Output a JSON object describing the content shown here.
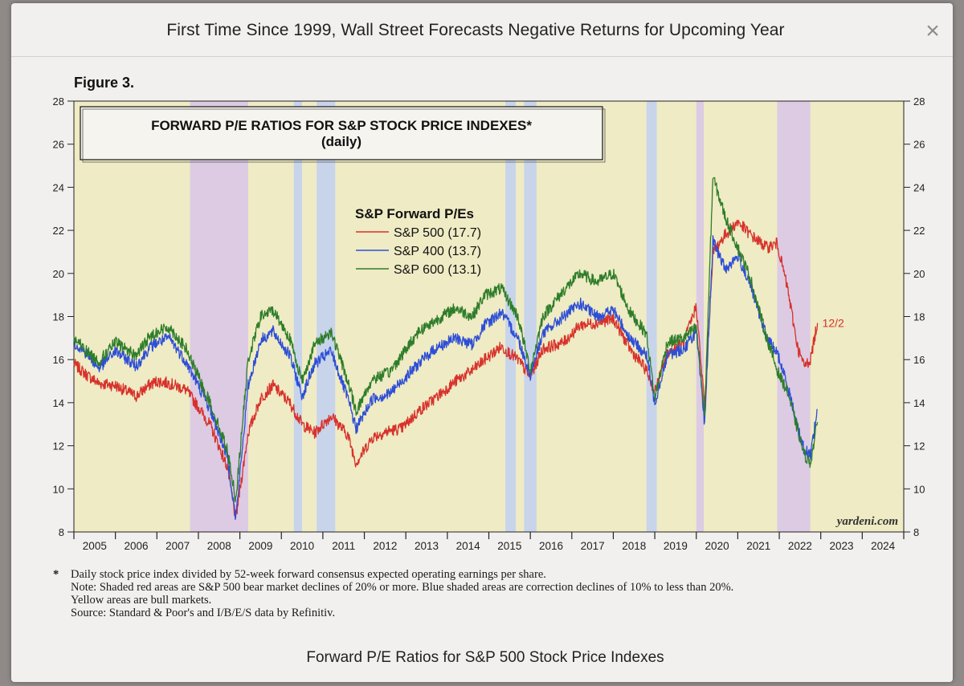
{
  "window": {
    "title": "First Time Since 1999, Wall Street Forecasts Negative Returns for Upcoming Year",
    "close_symbol": "×"
  },
  "figure_label": "Figure 3.",
  "caption": "Forward P/E Ratios for S&P 500 Stock Price Indexes",
  "notes": {
    "star": "*",
    "line1": "Daily stock price index divided by 52-week forward consensus expected operating earnings per share.",
    "line2": "Note: Shaded red areas are S&P 500 bear market declines of 20% or more.  Blue shaded areas are correction declines of 10% to less than 20%.",
    "line3": "Yellow areas are bull markets.",
    "line4": "Source: Standard & Poor's and I/B/E/S data by Refinitiv."
  },
  "chart_data": {
    "type": "line",
    "title": "FORWARD P/E RATIOS FOR S&P STOCK PRICE INDEXES*",
    "subtitle": "(daily)",
    "legend_title": "S&P Forward P/Es",
    "watermark": "yardeni.com",
    "end_annotation": "12/2",
    "xlabel": "",
    "ylabel": "",
    "xlim": [
      2005,
      2025
    ],
    "ylim": [
      8,
      28
    ],
    "yticks": [
      8,
      10,
      12,
      14,
      16,
      18,
      20,
      22,
      24,
      26,
      28
    ],
    "ytick_labels": [
      "8",
      "10",
      "12",
      "14",
      "16",
      "18",
      "20",
      "22",
      "24",
      "26",
      "28"
    ],
    "xtick_labels": [
      "2005",
      "2006",
      "2007",
      "2008",
      "2009",
      "2010",
      "2011",
      "2012",
      "2013",
      "2014",
      "2015",
      "2016",
      "2017",
      "2018",
      "2019",
      "2020",
      "2021",
      "2022",
      "2023",
      "2024"
    ],
    "shaded_regions": [
      {
        "kind": "bull",
        "start": 2005.0,
        "end": 2007.8,
        "color": "#efebc4"
      },
      {
        "kind": "bear",
        "start": 2007.8,
        "end": 2009.2,
        "color": "#dccbe3"
      },
      {
        "kind": "bull",
        "start": 2009.2,
        "end": 2010.3,
        "color": "#efebc4"
      },
      {
        "kind": "correction",
        "start": 2010.3,
        "end": 2010.5,
        "color": "#c7d4ea"
      },
      {
        "kind": "bull",
        "start": 2010.5,
        "end": 2010.85,
        "color": "#efebc4"
      },
      {
        "kind": "correction",
        "start": 2010.85,
        "end": 2011.3,
        "color": "#c7d4ea"
      },
      {
        "kind": "bull",
        "start": 2011.3,
        "end": 2015.4,
        "color": "#efebc4"
      },
      {
        "kind": "correction",
        "start": 2015.4,
        "end": 2015.65,
        "color": "#c7d4ea"
      },
      {
        "kind": "bull",
        "start": 2015.65,
        "end": 2015.85,
        "color": "#efebc4"
      },
      {
        "kind": "correction",
        "start": 2015.85,
        "end": 2016.15,
        "color": "#c7d4ea"
      },
      {
        "kind": "bull",
        "start": 2016.15,
        "end": 2018.8,
        "color": "#efebc4"
      },
      {
        "kind": "correction",
        "start": 2018.8,
        "end": 2019.05,
        "color": "#c7d4ea"
      },
      {
        "kind": "bull",
        "start": 2019.05,
        "end": 2020.0,
        "color": "#efebc4"
      },
      {
        "kind": "bear",
        "start": 2020.0,
        "end": 2020.18,
        "color": "#dccbe3"
      },
      {
        "kind": "bull",
        "start": 2020.18,
        "end": 2021.95,
        "color": "#efebc4"
      },
      {
        "kind": "bear",
        "start": 2021.95,
        "end": 2022.75,
        "color": "#dccbe3"
      },
      {
        "kind": "bull",
        "start": 2022.75,
        "end": 2025.0,
        "color": "#efebc4"
      }
    ],
    "series": [
      {
        "name": "S&P 500 (17.7)",
        "color": "#d7322c",
        "x": [
          2005.0,
          2005.3,
          2005.6,
          2006.0,
          2006.5,
          2006.8,
          2007.0,
          2007.3,
          2007.7,
          2008.0,
          2008.3,
          2008.7,
          2008.9,
          2009.2,
          2009.5,
          2009.8,
          2010.2,
          2010.5,
          2010.8,
          2011.2,
          2011.6,
          2011.8,
          2012.2,
          2012.6,
          2012.9,
          2013.3,
          2013.7,
          2014.2,
          2014.6,
          2014.9,
          2015.3,
          2015.7,
          2016.0,
          2016.3,
          2016.8,
          2017.2,
          2017.6,
          2018.0,
          2018.4,
          2018.8,
          2019.0,
          2019.3,
          2019.7,
          2020.0,
          2020.2,
          2020.4,
          2020.7,
          2021.0,
          2021.3,
          2021.7,
          2021.95,
          2022.2,
          2022.45,
          2022.6,
          2022.75,
          2022.92
        ],
        "values": [
          15.8,
          15.3,
          14.9,
          14.8,
          14.3,
          14.8,
          15.0,
          14.9,
          14.6,
          13.8,
          12.9,
          11.0,
          8.6,
          12.6,
          14.2,
          14.8,
          14.0,
          13.0,
          12.6,
          13.4,
          12.5,
          11.2,
          12.4,
          12.7,
          12.8,
          13.6,
          14.2,
          15.0,
          15.5,
          16.0,
          16.6,
          16.0,
          15.2,
          16.5,
          16.8,
          17.6,
          17.7,
          17.9,
          16.5,
          15.5,
          14.5,
          16.3,
          16.8,
          18.5,
          13.8,
          21.0,
          21.8,
          22.4,
          21.8,
          21.2,
          21.4,
          19.3,
          16.5,
          15.7,
          16.0,
          17.7
        ]
      },
      {
        "name": "S&P 400 (13.7)",
        "color": "#2d4ed6",
        "x": [
          2005.0,
          2005.3,
          2005.6,
          2006.0,
          2006.5,
          2006.8,
          2007.0,
          2007.3,
          2007.7,
          2008.0,
          2008.3,
          2008.7,
          2008.9,
          2009.2,
          2009.5,
          2009.8,
          2010.2,
          2010.5,
          2010.8,
          2011.2,
          2011.6,
          2011.8,
          2012.2,
          2012.6,
          2012.9,
          2013.3,
          2013.7,
          2014.2,
          2014.6,
          2014.9,
          2015.3,
          2015.7,
          2016.0,
          2016.3,
          2016.8,
          2017.2,
          2017.6,
          2018.0,
          2018.4,
          2018.8,
          2019.0,
          2019.3,
          2019.7,
          2020.0,
          2020.2,
          2020.4,
          2020.7,
          2021.0,
          2021.3,
          2021.7,
          2021.95,
          2022.2,
          2022.45,
          2022.6,
          2022.75,
          2022.92
        ],
        "values": [
          16.8,
          16.3,
          15.6,
          16.4,
          15.7,
          16.5,
          16.8,
          17.0,
          15.9,
          14.8,
          13.6,
          11.5,
          8.6,
          14.8,
          16.9,
          17.3,
          16.2,
          14.3,
          15.8,
          16.4,
          14.2,
          12.8,
          14.2,
          14.4,
          15.0,
          15.8,
          16.5,
          17.0,
          16.7,
          17.6,
          18.2,
          17.0,
          15.3,
          17.2,
          18.0,
          18.6,
          18.0,
          18.3,
          17.0,
          16.2,
          14.0,
          16.2,
          16.5,
          17.3,
          13.0,
          21.5,
          20.2,
          20.8,
          19.5,
          17.0,
          16.3,
          14.8,
          12.8,
          11.8,
          11.6,
          13.7
        ]
      },
      {
        "name": "S&P 600 (13.1)",
        "color": "#2e7d2a",
        "x": [
          2005.0,
          2005.3,
          2005.6,
          2006.0,
          2006.5,
          2006.8,
          2007.0,
          2007.3,
          2007.7,
          2008.0,
          2008.3,
          2008.7,
          2008.9,
          2009.2,
          2009.5,
          2009.8,
          2010.2,
          2010.5,
          2010.8,
          2011.2,
          2011.6,
          2011.8,
          2012.2,
          2012.6,
          2012.9,
          2013.3,
          2013.7,
          2014.2,
          2014.6,
          2014.9,
          2015.3,
          2015.7,
          2016.0,
          2016.3,
          2016.8,
          2017.2,
          2017.6,
          2018.0,
          2018.4,
          2018.8,
          2019.0,
          2019.3,
          2019.7,
          2020.0,
          2020.2,
          2020.4,
          2020.7,
          2021.0,
          2021.3,
          2021.7,
          2021.95,
          2022.2,
          2022.45,
          2022.6,
          2022.75,
          2022.92
        ],
        "values": [
          17.0,
          16.4,
          15.9,
          16.8,
          16.2,
          17.0,
          17.3,
          17.5,
          16.5,
          15.2,
          13.9,
          11.8,
          9.5,
          16.0,
          18.0,
          18.3,
          17.0,
          15.0,
          16.7,
          17.3,
          15.0,
          13.6,
          15.1,
          15.4,
          16.2,
          17.3,
          17.8,
          18.4,
          18.0,
          19.0,
          19.3,
          18.0,
          15.5,
          18.0,
          19.2,
          20.0,
          19.6,
          20.0,
          18.2,
          17.2,
          14.2,
          16.8,
          17.0,
          17.5,
          13.4,
          24.5,
          22.6,
          21.2,
          19.8,
          17.0,
          15.5,
          14.5,
          12.7,
          11.6,
          11.2,
          13.1
        ]
      }
    ]
  }
}
